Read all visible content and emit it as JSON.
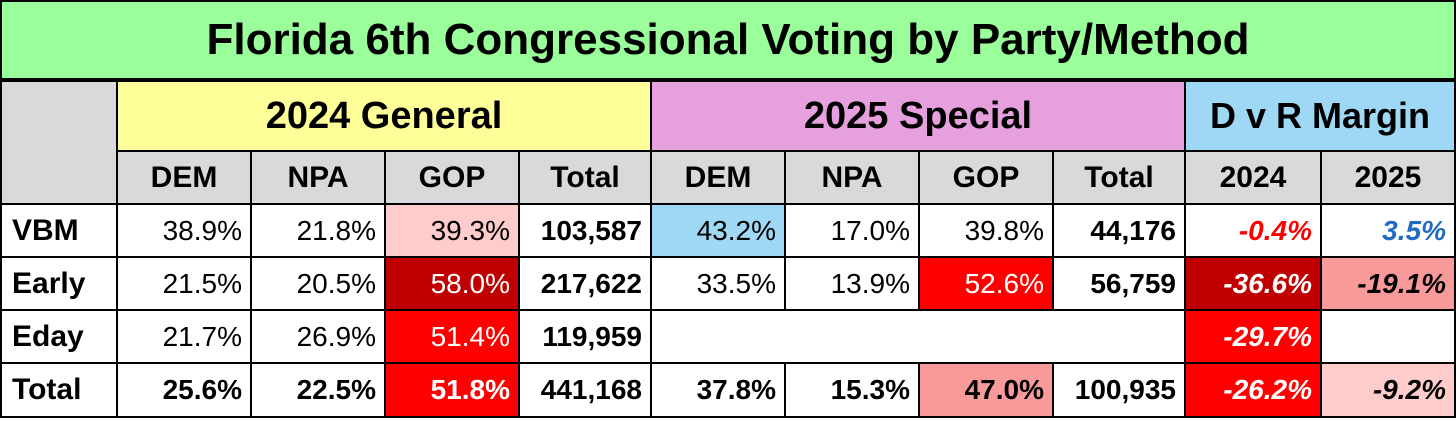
{
  "title": "Florida 6th Congressional Voting by Party/Method",
  "groups": {
    "general": "2024 General",
    "special": "2025 Special",
    "margin": "D v R Margin"
  },
  "subheaders": {
    "general": [
      "DEM",
      "NPA",
      "GOP",
      "Total"
    ],
    "special": [
      "DEM",
      "NPA",
      "GOP",
      "Total"
    ],
    "margin": [
      "2024",
      "2025"
    ]
  },
  "rows": [
    {
      "label": "VBM",
      "general": [
        "38.9%",
        "21.8%",
        "39.3%",
        "103,587"
      ],
      "special": [
        "43.2%",
        "17.0%",
        "39.8%",
        "44,176"
      ],
      "margin": [
        "-0.4%",
        "3.5%"
      ]
    },
    {
      "label": "Early",
      "general": [
        "21.5%",
        "20.5%",
        "58.0%",
        "217,622"
      ],
      "special": [
        "33.5%",
        "13.9%",
        "52.6%",
        "56,759"
      ],
      "margin": [
        "-36.6%",
        "-19.1%"
      ]
    },
    {
      "label": "Eday",
      "general": [
        "21.7%",
        "26.9%",
        "51.4%",
        "119,959"
      ],
      "special": [
        "",
        "",
        "",
        ""
      ],
      "margin": [
        "-29.7%",
        ""
      ]
    },
    {
      "label": "Total",
      "general": [
        "25.6%",
        "22.5%",
        "51.8%",
        "441,168"
      ],
      "special": [
        "37.8%",
        "15.3%",
        "47.0%",
        "100,935"
      ],
      "margin": [
        "-26.2%",
        "-9.2%"
      ]
    }
  ],
  "colors": {
    "title_bg": "#9aff9a",
    "general_bg": "#ffff99",
    "special_bg": "#e6a0dd",
    "margin_bg": "#9fd8f5",
    "subheader_bg": "#d9d9d9",
    "dark_red": "#c00000",
    "red": "#ff0000",
    "salmon": "#f89a9a",
    "pink": "#ffcccc",
    "light_blue": "#9fd8f5",
    "neg_text": "#ff0000",
    "pos_text": "#1f6bbf"
  }
}
